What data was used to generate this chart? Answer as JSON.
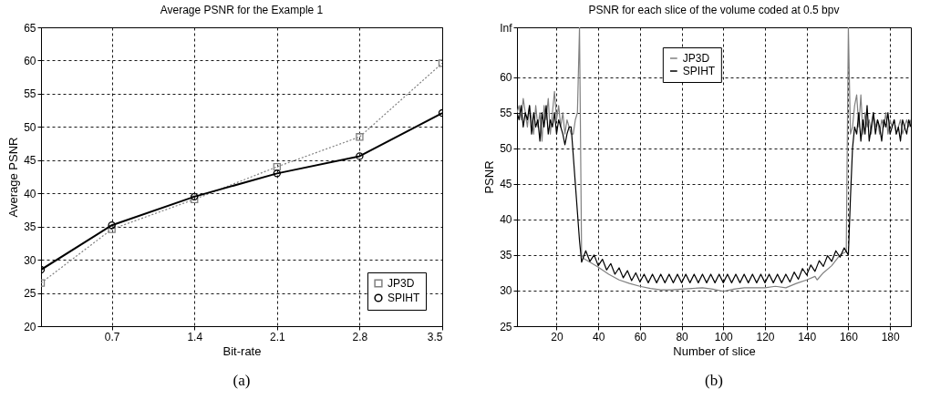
{
  "chart_data": [
    {
      "type": "line",
      "title": "Average PSNR for the Example 1",
      "xlabel": "Bit-rate",
      "ylabel": "Average PSNR",
      "x": [
        0.1,
        0.7,
        1.4,
        2.1,
        2.8,
        3.5
      ],
      "series": [
        {
          "name": "JP3D",
          "color": "#808080",
          "marker": "square",
          "line_style": "dotted",
          "values": [
            26.5,
            34.6,
            39.1,
            44.0,
            48.5,
            59.6
          ]
        },
        {
          "name": "SPIHT",
          "color": "#000000",
          "marker": "circle",
          "line_style": "solid",
          "values": [
            28.5,
            35.2,
            39.5,
            43.0,
            45.6,
            52.1
          ]
        }
      ],
      "xlim": [
        0.1,
        3.5
      ],
      "xticks": [
        0.7,
        1.4,
        2.1,
        2.8,
        3.5
      ],
      "ylim": [
        20,
        65
      ],
      "yticks": [
        20,
        25,
        30,
        35,
        40,
        45,
        50,
        55,
        60,
        65
      ],
      "grid": true,
      "legend": "bottom right",
      "annotations": [
        "(a)"
      ]
    },
    {
      "type": "line",
      "title": "PSNR for each slice of the volume coded at 0.5 bpv",
      "xlabel": "Number of slice",
      "ylabel": "PSNR",
      "series": [
        {
          "name": "JP3D",
          "color": "#808080",
          "x": [
            1,
            2,
            3,
            4,
            5,
            6,
            7,
            8,
            9,
            10,
            11,
            12,
            13,
            14,
            15,
            16,
            17,
            18,
            19,
            20,
            21,
            22,
            23,
            24,
            25,
            26,
            27,
            28,
            29,
            30,
            31,
            32,
            33,
            36,
            40,
            45,
            50,
            55,
            60,
            65,
            70,
            75,
            80,
            85,
            90,
            95,
            100,
            105,
            110,
            115,
            120,
            125,
            130,
            135,
            140,
            144,
            145,
            148,
            152,
            156,
            159,
            160,
            161,
            162,
            163,
            164,
            165,
            166,
            167,
            168,
            169,
            170,
            171,
            172,
            173,
            174,
            175,
            176,
            177,
            178,
            179,
            180,
            181,
            182,
            183,
            184,
            185,
            186,
            187,
            188,
            189,
            190
          ],
          "values": [
            55,
            56,
            54,
            57,
            55,
            53,
            56,
            54,
            52,
            56,
            53,
            55,
            51,
            56,
            54,
            57,
            52,
            55,
            58,
            54,
            56,
            53,
            55,
            52,
            54,
            53,
            52,
            52,
            54,
            55,
            67,
            35,
            34.5,
            34,
            33.3,
            32.3,
            31.5,
            31,
            30.6,
            30.3,
            30.1,
            30.1,
            30.2,
            30.3,
            30.4,
            30.2,
            29.9,
            30.2,
            30.4,
            30.4,
            30.4,
            30.6,
            30.4,
            31,
            31.5,
            32,
            31.5,
            32.5,
            33.5,
            35,
            35.5,
            67,
            52,
            53,
            56,
            57.5,
            53,
            57.5,
            52,
            55,
            53,
            54,
            52,
            55,
            53,
            54,
            52,
            54,
            53,
            55,
            52,
            54,
            53,
            54,
            52,
            53,
            54,
            52,
            53,
            54,
            53,
            54
          ]
        },
        {
          "name": "SPIHT",
          "color": "#000000",
          "x": [
            1,
            2,
            3,
            4,
            5,
            6,
            7,
            8,
            9,
            10,
            11,
            12,
            13,
            14,
            15,
            16,
            17,
            18,
            19,
            20,
            21,
            22,
            23,
            24,
            25,
            26,
            27,
            28,
            29,
            30,
            31,
            32,
            34,
            36,
            38,
            40,
            42,
            44,
            46,
            48,
            50,
            52,
            54,
            56,
            58,
            60,
            62,
            64,
            66,
            68,
            70,
            72,
            74,
            76,
            78,
            80,
            82,
            84,
            86,
            88,
            90,
            92,
            94,
            96,
            98,
            100,
            102,
            104,
            106,
            108,
            110,
            112,
            114,
            116,
            118,
            120,
            122,
            124,
            126,
            128,
            130,
            132,
            134,
            136,
            138,
            140,
            142,
            144,
            146,
            148,
            150,
            152,
            154,
            156,
            158,
            160,
            161,
            162,
            163,
            164,
            165,
            166,
            167,
            168,
            169,
            170,
            171,
            172,
            173,
            174,
            175,
            176,
            177,
            178,
            179,
            180,
            181,
            182,
            183,
            184,
            185,
            186,
            187,
            188,
            189,
            190
          ],
          "values": [
            55,
            54,
            56,
            53,
            55,
            54,
            56,
            52,
            55,
            53,
            54,
            51,
            55,
            53,
            56,
            52,
            54,
            53,
            55,
            52,
            54,
            53,
            52,
            50.5,
            52,
            53,
            53,
            49,
            45,
            41,
            37,
            34,
            35.6,
            34.1,
            35,
            33.5,
            34.4,
            32.9,
            33.8,
            32.3,
            33.2,
            31.8,
            32.8,
            31.4,
            32.5,
            31.2,
            32.3,
            31.1,
            32.3,
            31.1,
            32.3,
            31.1,
            32.3,
            31.1,
            32.3,
            31.1,
            32.3,
            31.1,
            32.3,
            31.1,
            32.3,
            31.1,
            32.3,
            31.1,
            32.3,
            31.1,
            32.3,
            31.1,
            32.3,
            31.1,
            32.3,
            31.1,
            32.3,
            31.1,
            32.3,
            31.1,
            32.3,
            31.1,
            32.3,
            31.1,
            32.3,
            31.2,
            32.6,
            31.6,
            33.1,
            32.2,
            33.6,
            32.7,
            34.2,
            33.4,
            34.9,
            34.1,
            35.6,
            34.7,
            36,
            35,
            43,
            50,
            53,
            52,
            55,
            51,
            54,
            52,
            56,
            51,
            53,
            55,
            52,
            54,
            53,
            51,
            54,
            53,
            55,
            52,
            53,
            54,
            52,
            53,
            51,
            54,
            53,
            52,
            54,
            53
          ]
        }
      ],
      "xlim": [
        1,
        190
      ],
      "xticks": [
        20,
        40,
        60,
        80,
        100,
        120,
        140,
        160,
        180
      ],
      "ylim": [
        25,
        67
      ],
      "yticks": [
        25,
        30,
        35,
        40,
        45,
        50,
        55,
        60,
        {
          "value": 67,
          "label": "Inf"
        }
      ],
      "grid": true,
      "legend": "top",
      "annotations": [
        "(b)"
      ]
    }
  ]
}
